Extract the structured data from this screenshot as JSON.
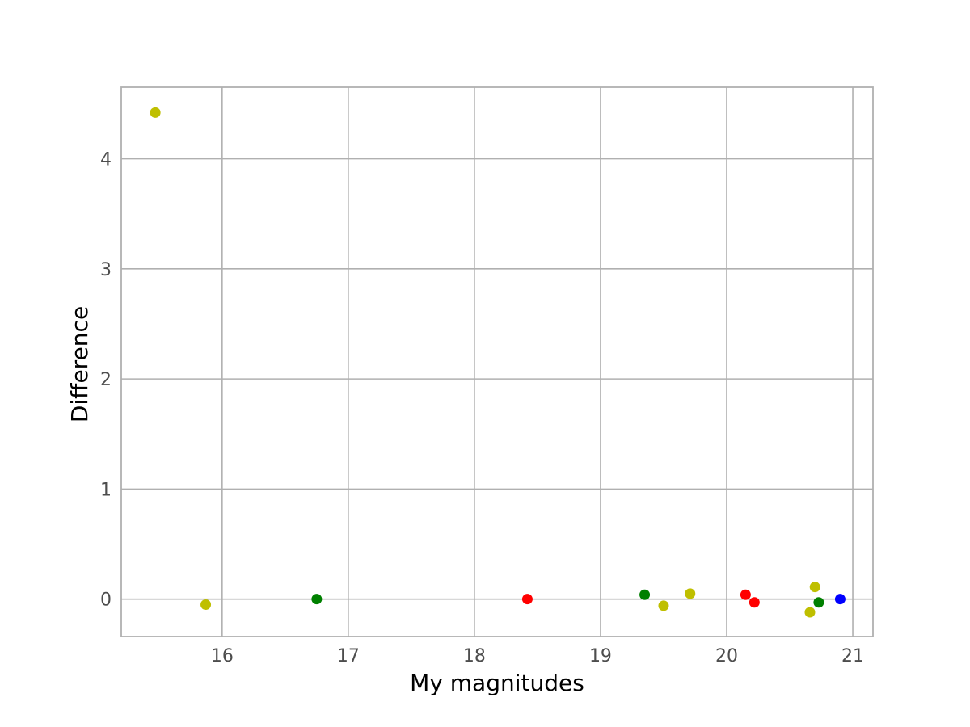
{
  "chart_data": {
    "type": "scatter",
    "xlabel": "My magnitudes",
    "ylabel": "Difference",
    "xlim": [
      15.2,
      21.16
    ],
    "ylim": [
      -0.34,
      4.65
    ],
    "grid": true,
    "x_ticks": [
      16,
      17,
      18,
      19,
      20,
      21
    ],
    "y_ticks": [
      0,
      1,
      2,
      3,
      4
    ],
    "x_tick_labels": [
      "16",
      "17",
      "18",
      "19",
      "20",
      "21"
    ],
    "y_tick_labels": [
      "0",
      "1",
      "2",
      "3",
      "4"
    ],
    "points": [
      {
        "x": 15.47,
        "y": 4.42,
        "color": "#bfbf00"
      },
      {
        "x": 15.87,
        "y": -0.05,
        "color": "#bfbf00"
      },
      {
        "x": 16.75,
        "y": 0.0,
        "color": "#008000"
      },
      {
        "x": 18.42,
        "y": 0.0,
        "color": "#ff0000"
      },
      {
        "x": 19.35,
        "y": 0.04,
        "color": "#008000"
      },
      {
        "x": 19.5,
        "y": -0.06,
        "color": "#bfbf00"
      },
      {
        "x": 19.71,
        "y": 0.05,
        "color": "#bfbf00"
      },
      {
        "x": 20.15,
        "y": 0.04,
        "color": "#ff0000"
      },
      {
        "x": 20.22,
        "y": -0.03,
        "color": "#ff0000"
      },
      {
        "x": 20.66,
        "y": -0.12,
        "color": "#bfbf00"
      },
      {
        "x": 20.7,
        "y": 0.11,
        "color": "#bfbf00"
      },
      {
        "x": 20.73,
        "y": -0.03,
        "color": "#008000"
      },
      {
        "x": 20.9,
        "y": 0.0,
        "color": "#0000ff"
      }
    ]
  }
}
